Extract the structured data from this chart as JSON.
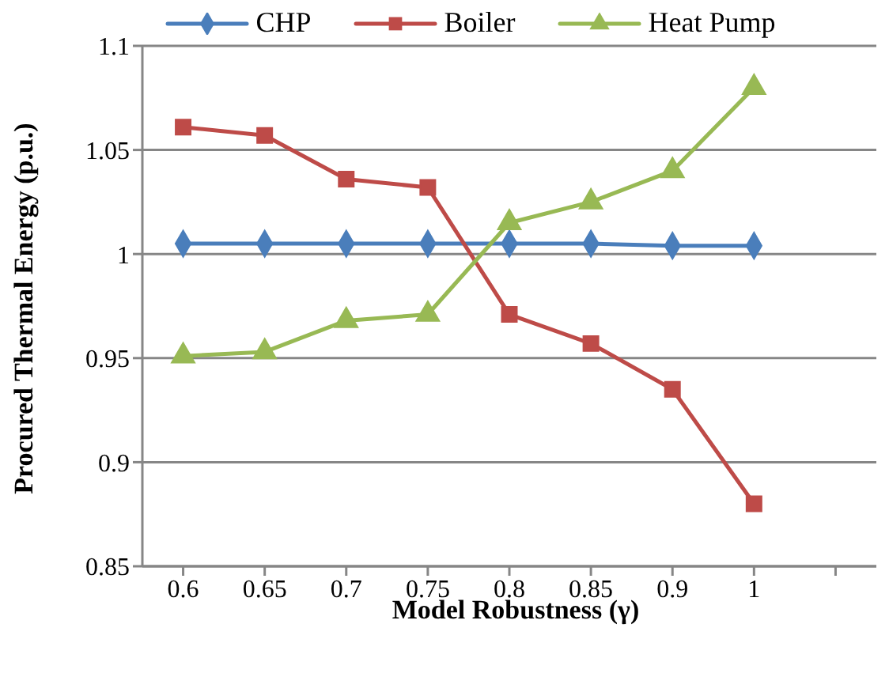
{
  "chart_data": {
    "type": "line",
    "xlabel": "Model Robustness (γ)",
    "ylabel": "Procured Thermal Energy (p.u.)",
    "categories": [
      "0.6",
      "0.65",
      "0.7",
      "0.75",
      "0.8",
      "0.85",
      "0.9",
      "1",
      null
    ],
    "series": [
      {
        "name": "CHP",
        "color": "#4a7ebb",
        "marker": "diamond",
        "values": [
          1.005,
          1.005,
          1.005,
          1.005,
          1.005,
          1.005,
          1.004,
          1.004,
          null
        ]
      },
      {
        "name": "Boiler",
        "color": "#be4b48",
        "marker": "square",
        "values": [
          1.061,
          1.057,
          1.036,
          1.032,
          0.971,
          0.957,
          0.935,
          0.88,
          null
        ]
      },
      {
        "name": "Heat Pump",
        "color": "#98b954",
        "marker": "triangle",
        "values": [
          0.951,
          0.953,
          0.968,
          0.971,
          1.015,
          1.025,
          1.04,
          1.08,
          null
        ]
      }
    ],
    "ylim": [
      0.85,
      1.1
    ],
    "yticks": [
      {
        "value": 0.85,
        "label": "0.85"
      },
      {
        "value": 0.9,
        "label": "0.9"
      },
      {
        "value": 0.95,
        "label": "0.95"
      },
      {
        "value": 1,
        "label": "1"
      },
      {
        "value": 1.05,
        "label": "1.05"
      },
      {
        "value": 1.1,
        "label": "1.1"
      }
    ],
    "grid": "y",
    "legend": "top",
    "line_style": "solid"
  }
}
